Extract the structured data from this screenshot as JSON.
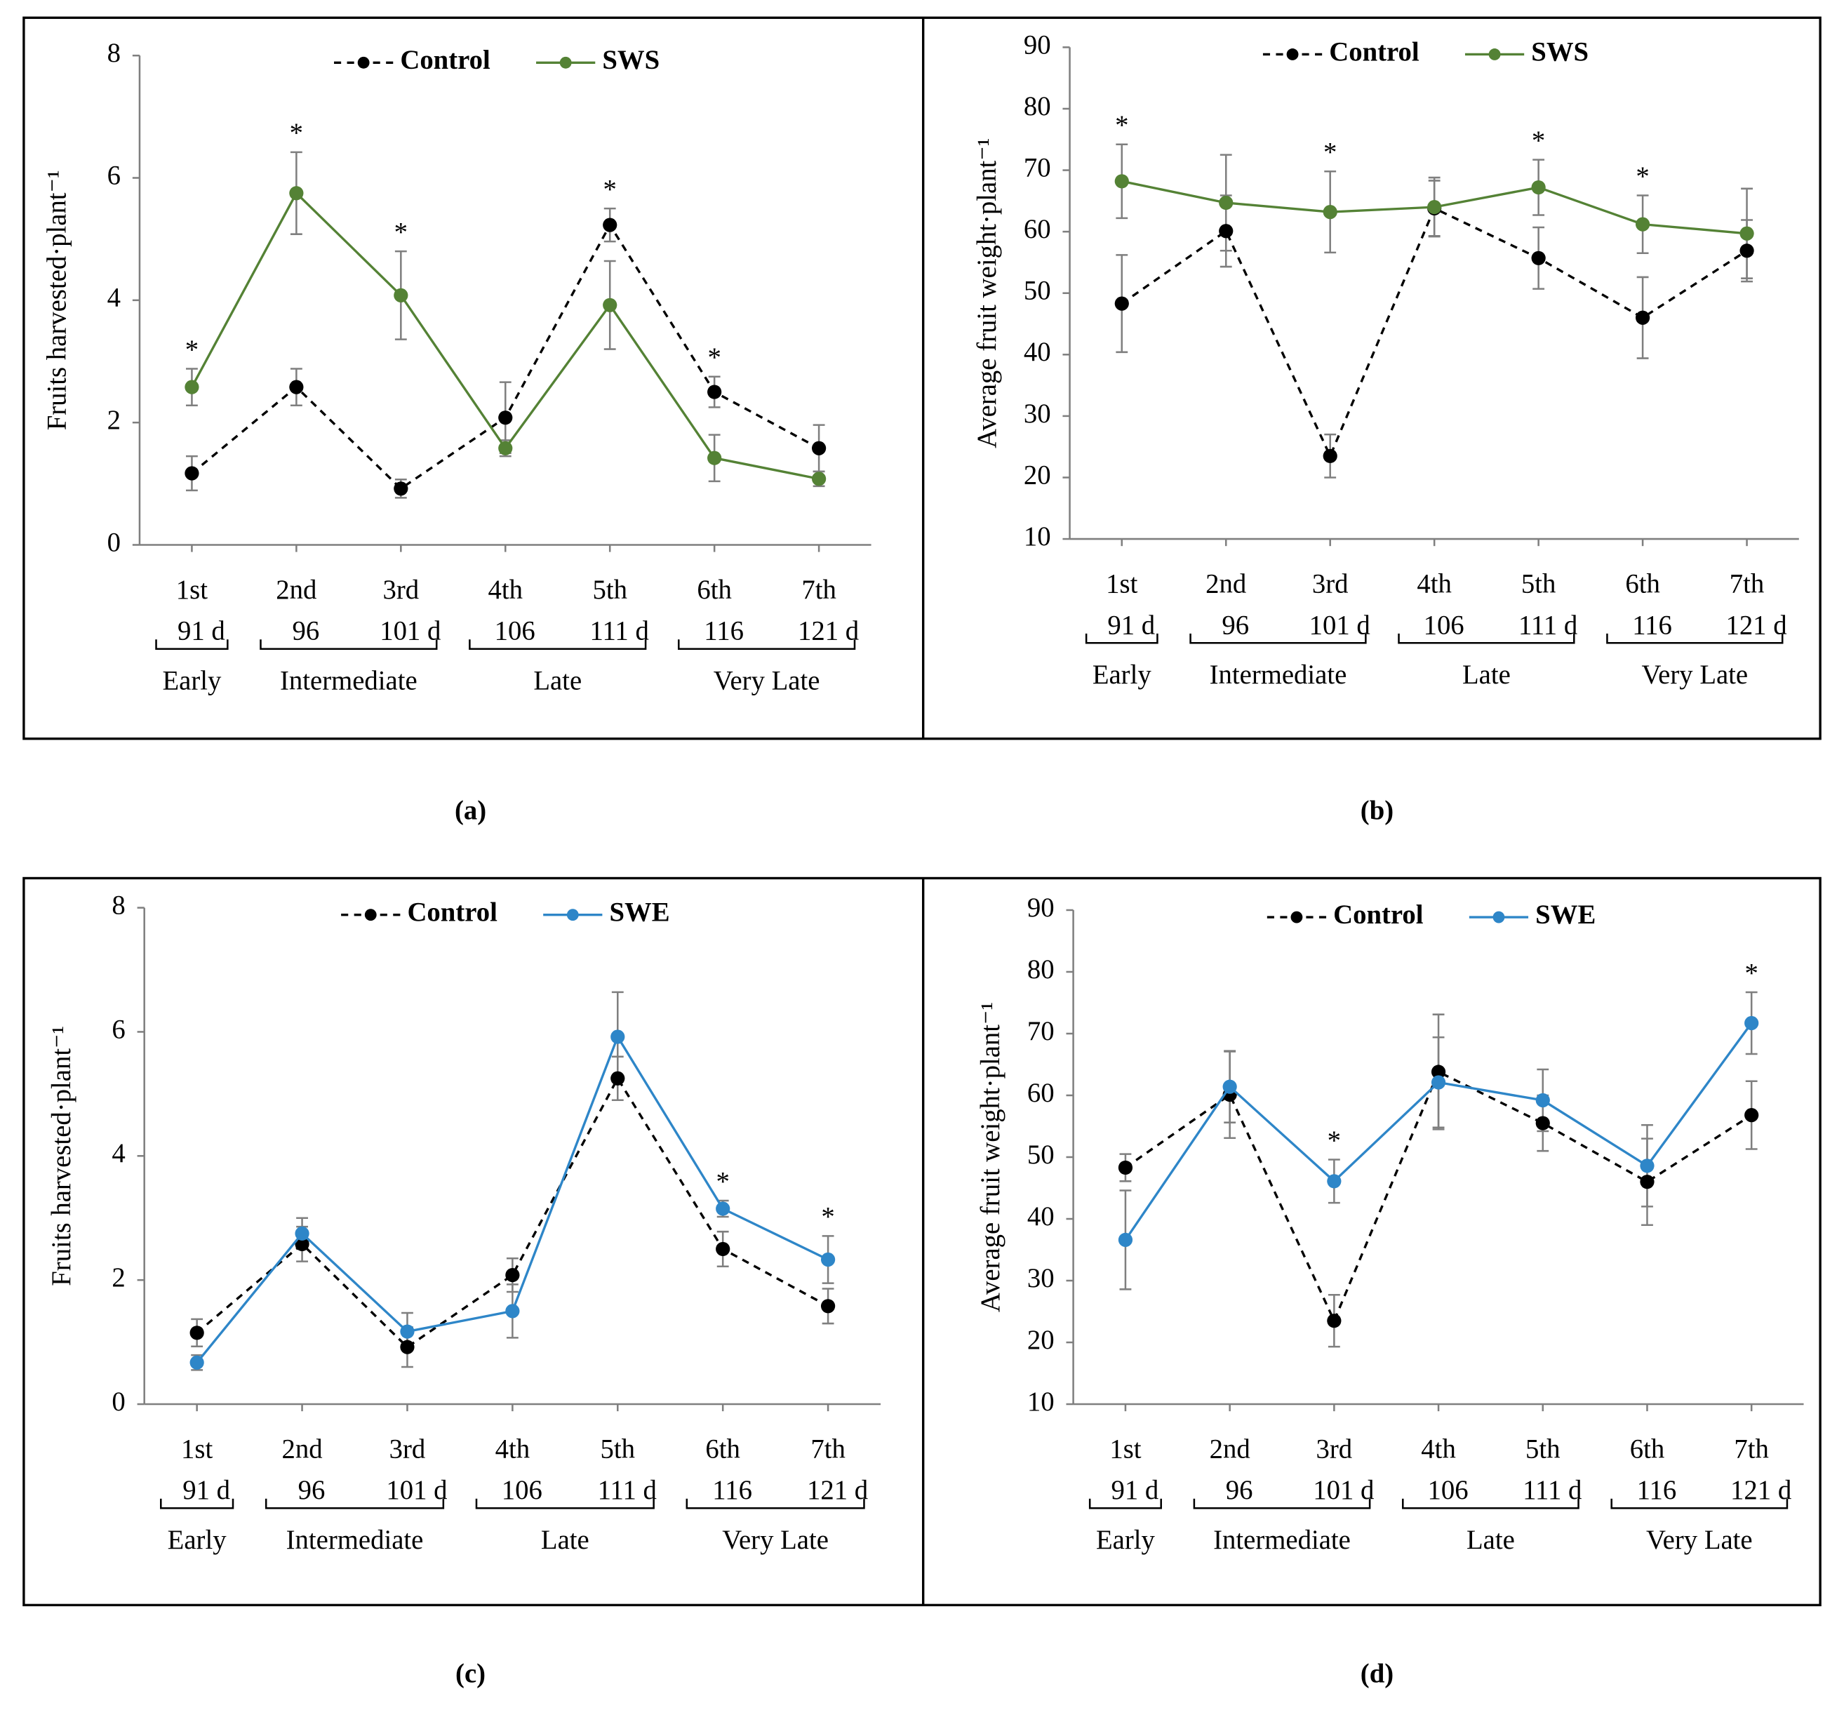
{
  "chart_data": [
    {
      "type": "line",
      "panel_label": "(a)",
      "ylabel": "Fruits harvested·plant⁻¹",
      "categories": [
        "1st",
        "2nd",
        "3rd",
        "4th",
        "5th",
        "6th",
        "7th"
      ],
      "days": [
        "91 d",
        "96",
        "101 d",
        "106",
        "111 d",
        "116",
        "121 d"
      ],
      "groups": [
        {
          "label": "Early",
          "size": 1
        },
        {
          "label": "Intermediate",
          "size": 2
        },
        {
          "label": "Late",
          "size": 2
        },
        {
          "label": "Very Late",
          "size": 2
        }
      ],
      "ylim": [
        0,
        8
      ],
      "yticks": [
        0,
        2,
        4,
        6,
        8
      ],
      "legend": "top",
      "series": [
        {
          "name": "Control",
          "color": "#000000",
          "line_style": "dashed",
          "values": [
            1.17,
            2.58,
            0.92,
            2.08,
            5.23,
            2.5,
            1.58
          ],
          "errors": [
            0.28,
            0.3,
            0.15,
            0.58,
            0.27,
            0.25,
            0.38
          ]
        },
        {
          "name": "SWS",
          "color": "#548235",
          "line_style": "solid",
          "values": [
            2.58,
            5.75,
            4.08,
            1.58,
            3.92,
            1.42,
            1.08
          ],
          "errors": [
            0.3,
            0.67,
            0.72,
            0.13,
            0.72,
            0.38,
            0.12
          ]
        }
      ],
      "significance": [
        "*",
        "*",
        "*",
        null,
        "*",
        "*",
        null
      ]
    },
    {
      "type": "line",
      "panel_label": "(b)",
      "ylabel": "Average fruit weight·plant⁻¹",
      "categories": [
        "1st",
        "2nd",
        "3rd",
        "4th",
        "5th",
        "6th",
        "7th"
      ],
      "days": [
        "91 d",
        "96",
        "101 d",
        "106",
        "111 d",
        "116",
        "121 d"
      ],
      "groups": [
        {
          "label": "Early",
          "size": 1
        },
        {
          "label": "Intermediate",
          "size": 2
        },
        {
          "label": "Late",
          "size": 2
        },
        {
          "label": "Very Late",
          "size": 2
        }
      ],
      "ylim": [
        10,
        90
      ],
      "yticks": [
        10,
        20,
        30,
        40,
        50,
        60,
        70,
        80,
        90
      ],
      "legend": "top",
      "series": [
        {
          "name": "Control",
          "color": "#000000",
          "line_style": "dashed",
          "values": [
            48.3,
            60.1,
            23.5,
            63.8,
            55.7,
            46.0,
            56.9
          ],
          "errors": [
            7.9,
            5.8,
            3.5,
            4.5,
            5.0,
            6.6,
            5.0
          ]
        },
        {
          "name": "SWS",
          "color": "#548235",
          "line_style": "solid",
          "values": [
            68.2,
            64.7,
            63.2,
            64.0,
            67.2,
            61.2,
            59.7
          ],
          "errors": [
            6.0,
            7.8,
            6.6,
            4.8,
            4.5,
            4.7,
            7.3
          ]
        }
      ],
      "significance": [
        "*",
        null,
        "*",
        null,
        "*",
        "*",
        null
      ]
    },
    {
      "type": "line",
      "panel_label": "(c)",
      "ylabel": "Fruits harvested·plant⁻¹",
      "categories": [
        "1st",
        "2nd",
        "3rd",
        "4th",
        "5th",
        "6th",
        "7th"
      ],
      "days": [
        "91 d",
        "96",
        "101 d",
        "106",
        "111 d",
        "116",
        "121 d"
      ],
      "groups": [
        {
          "label": "Early",
          "size": 1
        },
        {
          "label": "Intermediate",
          "size": 2
        },
        {
          "label": "Late",
          "size": 2
        },
        {
          "label": "Very Late",
          "size": 2
        }
      ],
      "ylim": [
        0,
        8
      ],
      "yticks": [
        0,
        2,
        4,
        6,
        8
      ],
      "legend": "top",
      "series": [
        {
          "name": "Control",
          "color": "#000000",
          "line_style": "dashed",
          "values": [
            1.15,
            2.58,
            0.92,
            2.08,
            5.25,
            2.5,
            1.58
          ],
          "errors": [
            0.22,
            0.28,
            0.32,
            0.27,
            0.35,
            0.28,
            0.28
          ]
        },
        {
          "name": "SWE",
          "color": "#2e86c8",
          "line_style": "solid",
          "values": [
            0.67,
            2.75,
            1.17,
            1.5,
            5.92,
            3.15,
            2.33
          ],
          "errors": [
            0.12,
            0.25,
            0.3,
            0.43,
            0.72,
            0.13,
            0.38
          ]
        }
      ],
      "significance": [
        null,
        null,
        null,
        null,
        null,
        "*",
        "*"
      ]
    },
    {
      "type": "line",
      "panel_label": "(d)",
      "ylabel": "Average fruit weight·plant⁻¹",
      "categories": [
        "1st",
        "2nd",
        "3rd",
        "4th",
        "5th",
        "6th",
        "7th"
      ],
      "days": [
        "91 d",
        "96",
        "101 d",
        "106",
        "111 d",
        "116",
        "121 d"
      ],
      "groups": [
        {
          "label": "Early",
          "size": 1
        },
        {
          "label": "Intermediate",
          "size": 2
        },
        {
          "label": "Late",
          "size": 2
        },
        {
          "label": "Very Late",
          "size": 2
        }
      ],
      "ylim": [
        10,
        90
      ],
      "yticks": [
        10,
        20,
        30,
        40,
        50,
        60,
        70,
        80,
        90
      ],
      "legend": "top",
      "series": [
        {
          "name": "Control",
          "color": "#000000",
          "line_style": "dashed",
          "values": [
            48.3,
            60.1,
            23.5,
            63.8,
            55.5,
            46.0,
            56.8
          ],
          "errors": [
            2.2,
            7.0,
            4.2,
            9.3,
            4.5,
            7.0,
            5.5
          ]
        },
        {
          "name": "SWE",
          "color": "#2e86c8",
          "line_style": "solid",
          "values": [
            36.6,
            61.4,
            46.1,
            62.1,
            59.2,
            48.6,
            71.7
          ],
          "errors": [
            8.0,
            5.8,
            3.5,
            7.3,
            5.0,
            6.6,
            5.0
          ]
        }
      ],
      "significance": [
        null,
        null,
        "*",
        null,
        null,
        null,
        "*"
      ]
    }
  ]
}
